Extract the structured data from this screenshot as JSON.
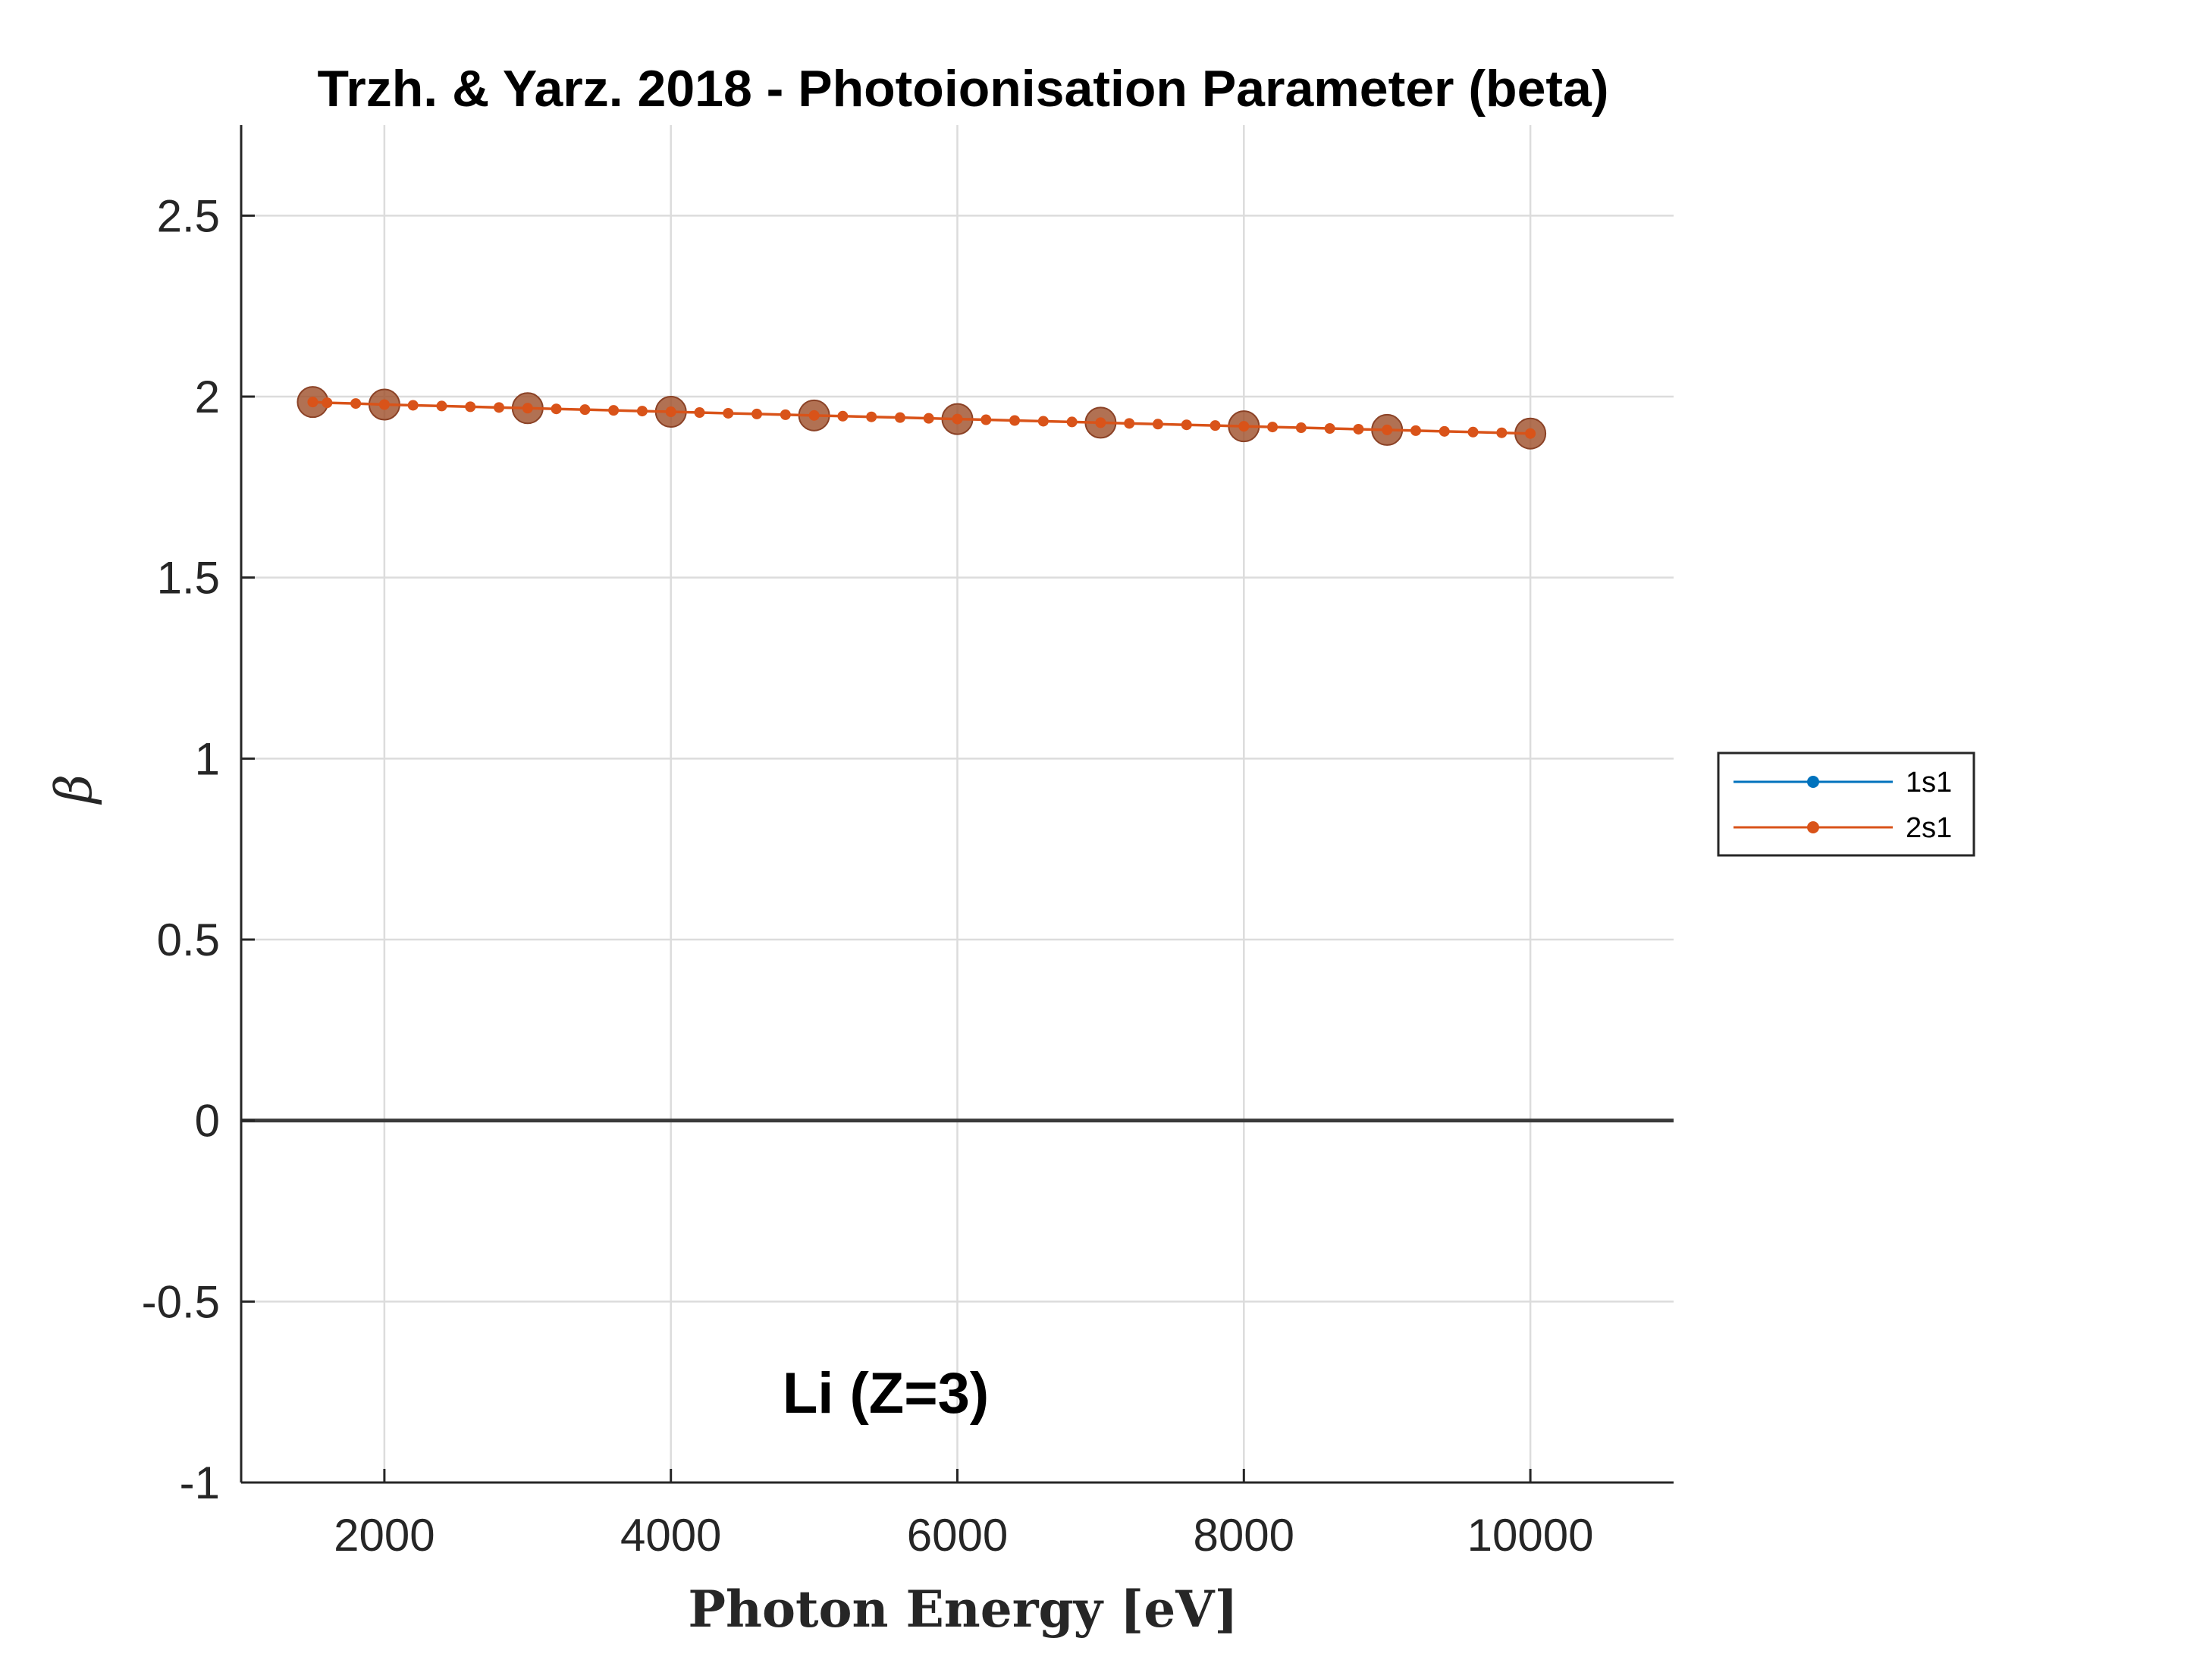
{
  "chart_data": {
    "type": "line",
    "title": "Trzh. & Yarz. 2018 - Photoionisation Parameter (beta)",
    "xlabel": "Photon Energy [eV]",
    "ylabel": "β",
    "xlim": [
      1000,
      11000
    ],
    "ylim": [
      -1,
      2.75
    ],
    "xticks": [
      2000,
      4000,
      6000,
      8000,
      10000
    ],
    "xtick_labels": [
      "2000",
      "4000",
      "6000",
      "8000",
      "10000"
    ],
    "yticks": [
      -1,
      -0.5,
      0,
      0.5,
      1,
      1.5,
      2,
      2.5
    ],
    "ytick_labels": [
      "-1",
      "-0.5",
      "0",
      "0.5",
      "1",
      "1.5",
      "2",
      "2.5"
    ],
    "grid": true,
    "zero_line": true,
    "annotation": "Li (Z=3)",
    "legend_position": "right",
    "colors": {
      "series_1s1": "#0072BD",
      "series_2s1": "#D95319",
      "reference_markers": "#A0522D"
    },
    "series": [
      {
        "name": "1s1",
        "color": "#0072BD",
        "x": [],
        "y": []
      },
      {
        "name": "2s1",
        "color": "#D95319",
        "x": [
          1500,
          1600,
          1800,
          2000,
          2200,
          2400,
          2600,
          2800,
          3000,
          3200,
          3400,
          3600,
          3800,
          4000,
          4200,
          4400,
          4600,
          4800,
          5000,
          5200,
          5400,
          5600,
          5800,
          6000,
          6200,
          6400,
          6600,
          6800,
          7000,
          7200,
          7400,
          7600,
          7800,
          8000,
          8200,
          8400,
          8600,
          8800,
          9000,
          9200,
          9400,
          9600,
          9800,
          10000
        ],
        "y": [
          1.985,
          1.983,
          1.981,
          1.978,
          1.976,
          1.974,
          1.972,
          1.97,
          1.968,
          1.966,
          1.964,
          1.962,
          1.96,
          1.958,
          1.956,
          1.954,
          1.952,
          1.95,
          1.948,
          1.946,
          1.944,
          1.942,
          1.94,
          1.938,
          1.936,
          1.934,
          1.932,
          1.93,
          1.928,
          1.926,
          1.924,
          1.922,
          1.92,
          1.918,
          1.916,
          1.914,
          1.912,
          1.91,
          1.908,
          1.906,
          1.904,
          1.902,
          1.9,
          1.898
        ]
      }
    ],
    "reference_points": {
      "x": [
        1500,
        2000,
        3000,
        4000,
        5000,
        6000,
        7000,
        8000,
        9000,
        10000
      ],
      "y": [
        1.985,
        1.978,
        1.968,
        1.958,
        1.948,
        1.938,
        1.928,
        1.918,
        1.908,
        1.898
      ]
    }
  }
}
